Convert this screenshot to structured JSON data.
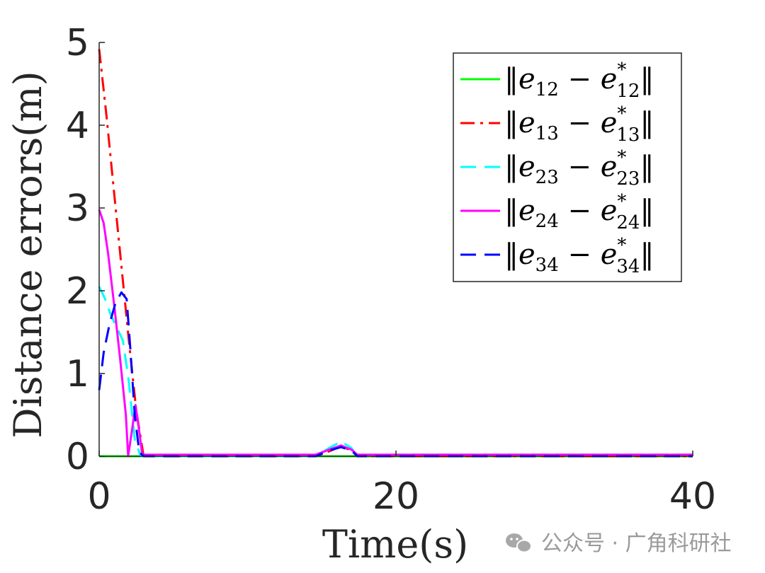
{
  "chart_data": {
    "type": "line",
    "xlabel": "Time(s)",
    "ylabel": "Distance errors(m)",
    "xlim": [
      0,
      40
    ],
    "ylim": [
      0,
      5
    ],
    "xticks": [
      "0",
      "20",
      "40"
    ],
    "yticks": [
      "0",
      "1",
      "2",
      "3",
      "4",
      "5"
    ],
    "grid": false,
    "legend_position": "top-right",
    "series": [
      {
        "name": "||e12 - e*12||",
        "legend": {
          "idx": "12"
        },
        "color": "#00ff00",
        "dash": "solid",
        "x": [
          0,
          5,
          10,
          15,
          20,
          25,
          30,
          35,
          40
        ],
        "y": [
          0,
          0,
          0,
          0,
          0,
          0,
          0,
          0,
          0
        ]
      },
      {
        "name": "||e13 - e*13||",
        "legend": {
          "idx": "13"
        },
        "color": "#ff0000",
        "dash": "dashdot",
        "x": [
          0,
          0.5,
          1.0,
          1.5,
          2.0,
          2.5,
          3.0,
          5,
          10,
          14.6,
          15.5,
          16.3,
          17.0,
          17.4,
          20,
          30,
          40
        ],
        "y": [
          4.92,
          4.1,
          3.2,
          2.3,
          1.4,
          0.55,
          0.0,
          0.0,
          0.0,
          0.0,
          0.06,
          0.12,
          0.07,
          0.0,
          0.0,
          0.0,
          0.0
        ]
      },
      {
        "name": "||e23 - e*23||",
        "legend": {
          "idx": "23"
        },
        "color": "#00ffff",
        "dash": "dashed",
        "x": [
          0,
          0.4,
          0.8,
          1.2,
          1.6,
          2.0,
          2.4,
          2.8,
          3.0,
          10,
          14.6,
          15.5,
          16.3,
          17.0,
          17.4,
          20,
          30,
          40
        ],
        "y": [
          2.05,
          1.9,
          1.7,
          1.55,
          1.4,
          0.9,
          0.2,
          0.0,
          0.0,
          0.0,
          0.0,
          0.1,
          0.18,
          0.1,
          0.0,
          0.02,
          0.02,
          0.02
        ]
      },
      {
        "name": "||e24 - e*24||",
        "legend": {
          "idx": "24"
        },
        "color": "#ff00ff",
        "dash": "solid",
        "x": [
          0,
          0.3,
          0.6,
          1.0,
          1.4,
          1.8,
          1.95,
          2.2,
          2.45,
          2.7,
          2.9,
          3.0,
          10,
          14.6,
          15.5,
          16.3,
          17.0,
          17.4,
          20,
          30,
          40
        ],
        "y": [
          2.98,
          2.82,
          2.45,
          1.85,
          1.2,
          0.5,
          0.0,
          0.3,
          0.62,
          0.3,
          0.02,
          0.02,
          0.02,
          0.02,
          0.08,
          0.13,
          0.08,
          0.02,
          0.02,
          0.02,
          0.02
        ]
      },
      {
        "name": "||e34 - e*34||",
        "legend": {
          "idx": "34"
        },
        "color": "#0000ff",
        "dash": "dashed",
        "x": [
          0,
          0.3,
          0.7,
          1.1,
          1.5,
          1.85,
          2.1,
          2.4,
          2.7,
          3.0,
          10,
          14.6,
          15.5,
          16.3,
          17.0,
          17.4,
          20,
          30,
          40
        ],
        "y": [
          0.8,
          1.25,
          1.6,
          1.85,
          1.98,
          1.9,
          1.3,
          0.5,
          0.05,
          0.0,
          0.0,
          0.0,
          0.07,
          0.11,
          0.07,
          0.0,
          0.0,
          0.0,
          0.0
        ]
      }
    ]
  },
  "watermark": {
    "text": "公众号 · 广角科研社",
    "icon": "wechat-icon",
    "color": "#9a9a9a"
  }
}
